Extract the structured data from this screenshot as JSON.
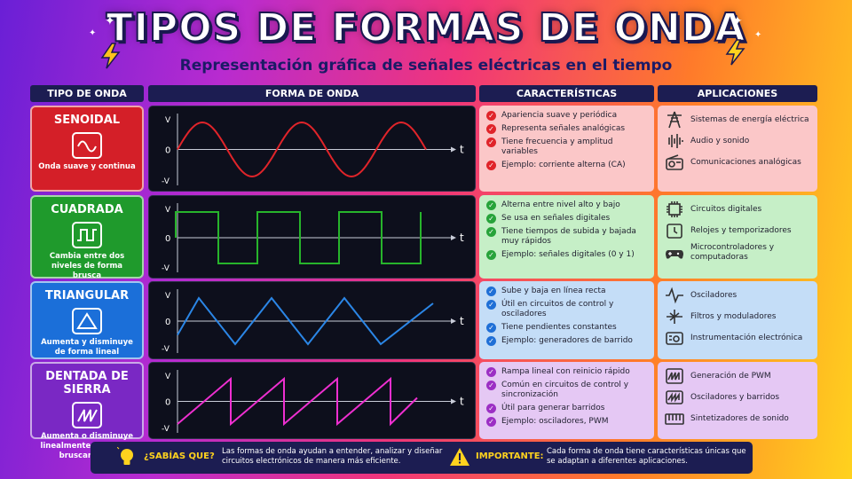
{
  "title": "TIPOS DE FORMAS DE ONDA",
  "subtitle": "Representación gráfica de señales eléctricas en el tiempo",
  "headers": {
    "tipo": "TIPO DE ONDA",
    "forma": "FORMA DE ONDA",
    "caracteristicas": "CARACTERÍSTICAS",
    "aplicaciones": "APLICACIONES"
  },
  "axis": {
    "v_pos": "V",
    "zero": "0",
    "v_neg": "-V",
    "t": "t"
  },
  "rows": [
    {
      "name": "SENOIDAL",
      "desc": "Onda suave y continua",
      "color": "#d41f28",
      "wave_color": "#e0242a",
      "check_color": "#e0242a",
      "char_bg": "#fbc7c8",
      "app_bg": "#fbc7c8",
      "icon": "sine-icon",
      "characteristics": [
        "Apariencia suave y periódica",
        "Representa señales analógicas",
        "Tiene frecuencia y amplitud variables",
        "Ejemplo: corriente alterna (CA)"
      ],
      "applications": [
        {
          "icon": "power-tower-icon",
          "text": "Sistemas de energía eléctrica"
        },
        {
          "icon": "audio-wave-icon",
          "text": "Audio y sonido"
        },
        {
          "icon": "radio-icon",
          "text": "Comunicaciones analógicas"
        }
      ]
    },
    {
      "name": "CUADRADA",
      "desc": "Cambia entre dos niveles de forma brusca",
      "color": "#1f9a2c",
      "wave_color": "#27b42b",
      "check_color": "#27a33a",
      "char_bg": "#c6efc7",
      "app_bg": "#c6efc7",
      "icon": "square-wave-icon",
      "characteristics": [
        "Alterna entre nivel alto y bajo",
        "Se usa en señales digitales",
        "Tiene tiempos de subida y bajada muy rápidos",
        "Ejemplo: señales digitales (0 y 1)"
      ],
      "applications": [
        {
          "icon": "chip-icon",
          "text": "Circuitos digitales"
        },
        {
          "icon": "clock-icon",
          "text": "Relojes y temporizadores"
        },
        {
          "icon": "gamepad-icon",
          "text": "Microcontroladores y computadoras"
        }
      ]
    },
    {
      "name": "TRIANGULAR",
      "desc": "Aumenta y disminuye de forma lineal",
      "color": "#1b6fd9",
      "wave_color": "#2b86e6",
      "check_color": "#1f6fd6",
      "char_bg": "#c4ddf7",
      "app_bg": "#c4ddf7",
      "icon": "triangle-icon",
      "characteristics": [
        "Sube y baja en línea recta",
        "Útil en circuitos de control y osciladores",
        "Tiene pendientes constantes",
        "Ejemplo: generadores de barrido"
      ],
      "applications": [
        {
          "icon": "oscillator-icon",
          "text": "Osciladores"
        },
        {
          "icon": "filter-icon",
          "text": "Filtros y moduladores"
        },
        {
          "icon": "instrument-icon",
          "text": "Instrumentación electrónica"
        }
      ]
    },
    {
      "name": "DENTADA DE SIERRA",
      "desc": "Aumenta o disminuye linealmente y regresa bruscamente",
      "color": "#7a28c4",
      "wave_color": "#ee2fd0",
      "check_color": "#9c2fc4",
      "char_bg": "#e5c8f4",
      "app_bg": "#e5c8f4",
      "icon": "sawtooth-icon",
      "characteristics": [
        "Rampa lineal con reinicio rápido",
        "Común en circuitos de control y sincronización",
        "Útil para generar barridos",
        "Ejemplo: osciladores, PWM"
      ],
      "applications": [
        {
          "icon": "pwm-icon",
          "text": "Generación de PWM"
        },
        {
          "icon": "sweep-icon",
          "text": "Osciladores y barridos"
        },
        {
          "icon": "keyboard-icon",
          "text": "Sintetizadores de sonido"
        }
      ]
    }
  ],
  "footer": {
    "tip_label": "¿SABÍAS QUE?",
    "tip_text": "Las formas de onda ayudan a entender, analizar y diseñar circuitos electrónicos de manera más eficiente.",
    "warn_label": "IMPORTANTE:",
    "warn_text": "Cada forma de onda tiene características únicas que se adaptan a diferentes aplicaciones."
  }
}
